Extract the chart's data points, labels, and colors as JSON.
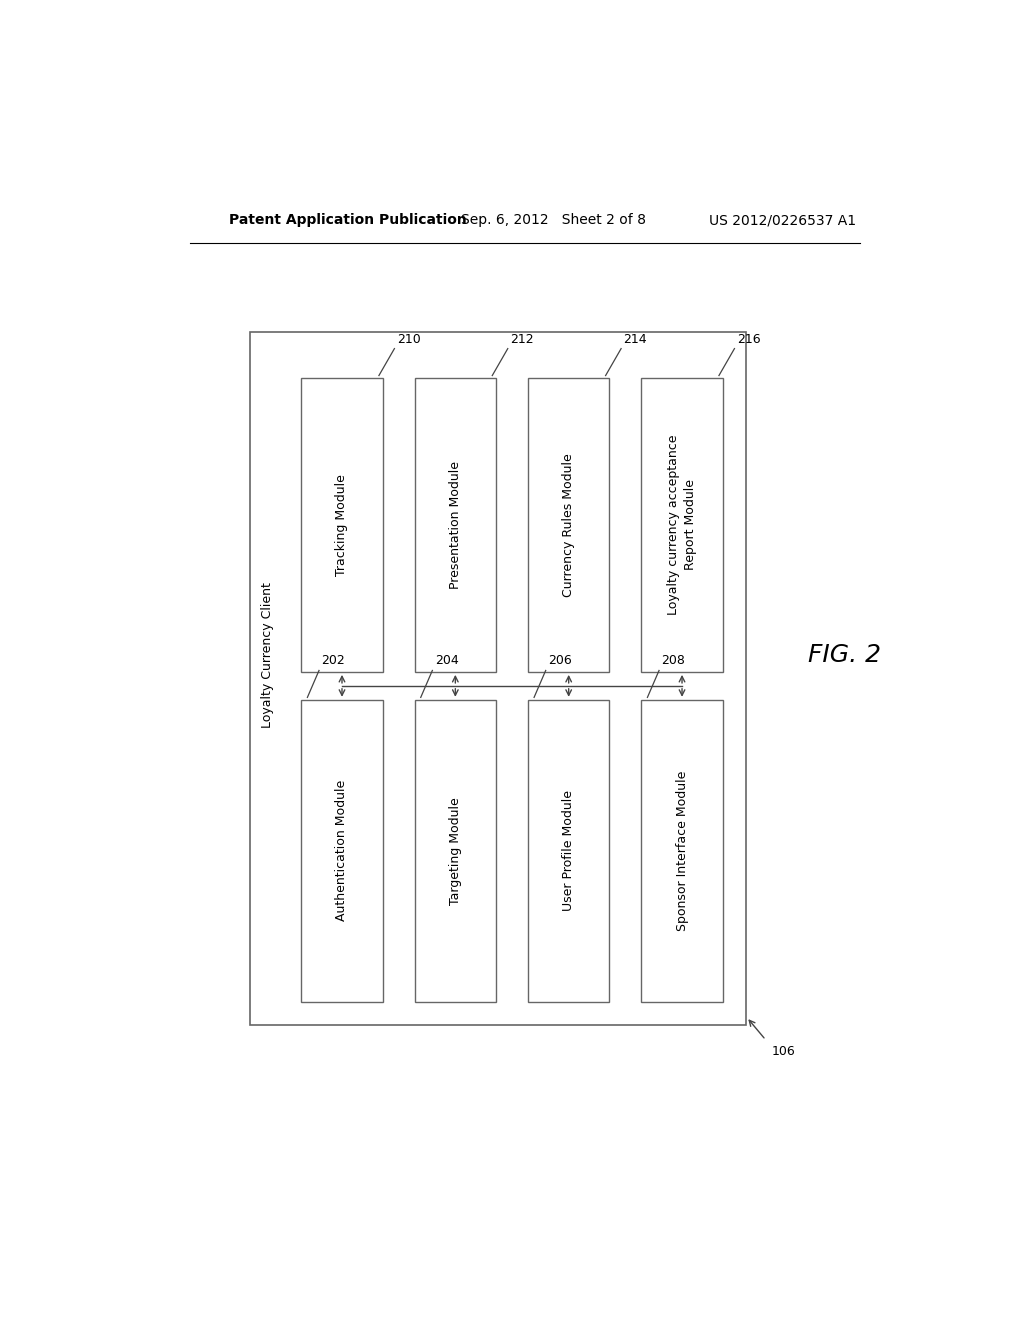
{
  "bg_color": "#ffffff",
  "header_left": "Patent Application Publication",
  "header_center": "Sep. 6, 2012   Sheet 2 of 8",
  "header_right": "US 2012/0226537 A1",
  "fig_label": "FIG. 2",
  "outer_box_label": "Loyalty Currency Client",
  "outer_box_ref": "106",
  "top_modules": [
    {
      "label": "Tracking Module",
      "ref": "210"
    },
    {
      "label": "Presentation Module",
      "ref": "212"
    },
    {
      "label": "Currency Rules Module",
      "ref": "214"
    },
    {
      "label": "Loyalty currency acceptance\nReport Module",
      "ref": "216"
    }
  ],
  "bottom_modules": [
    {
      "label": "Authentication Module",
      "ref": "202"
    },
    {
      "label": "Targeting Module",
      "ref": "204"
    },
    {
      "label": "User Profile Module",
      "ref": "206"
    },
    {
      "label": "Sponsor Interface Module",
      "ref": "208"
    }
  ],
  "text_color": "#000000",
  "box_edge_color": "#666666",
  "arrow_color": "#444444",
  "font_size_header": 10,
  "font_size_box": 9,
  "font_size_ref": 9,
  "font_size_fig": 18,
  "font_size_outer_label": 9
}
